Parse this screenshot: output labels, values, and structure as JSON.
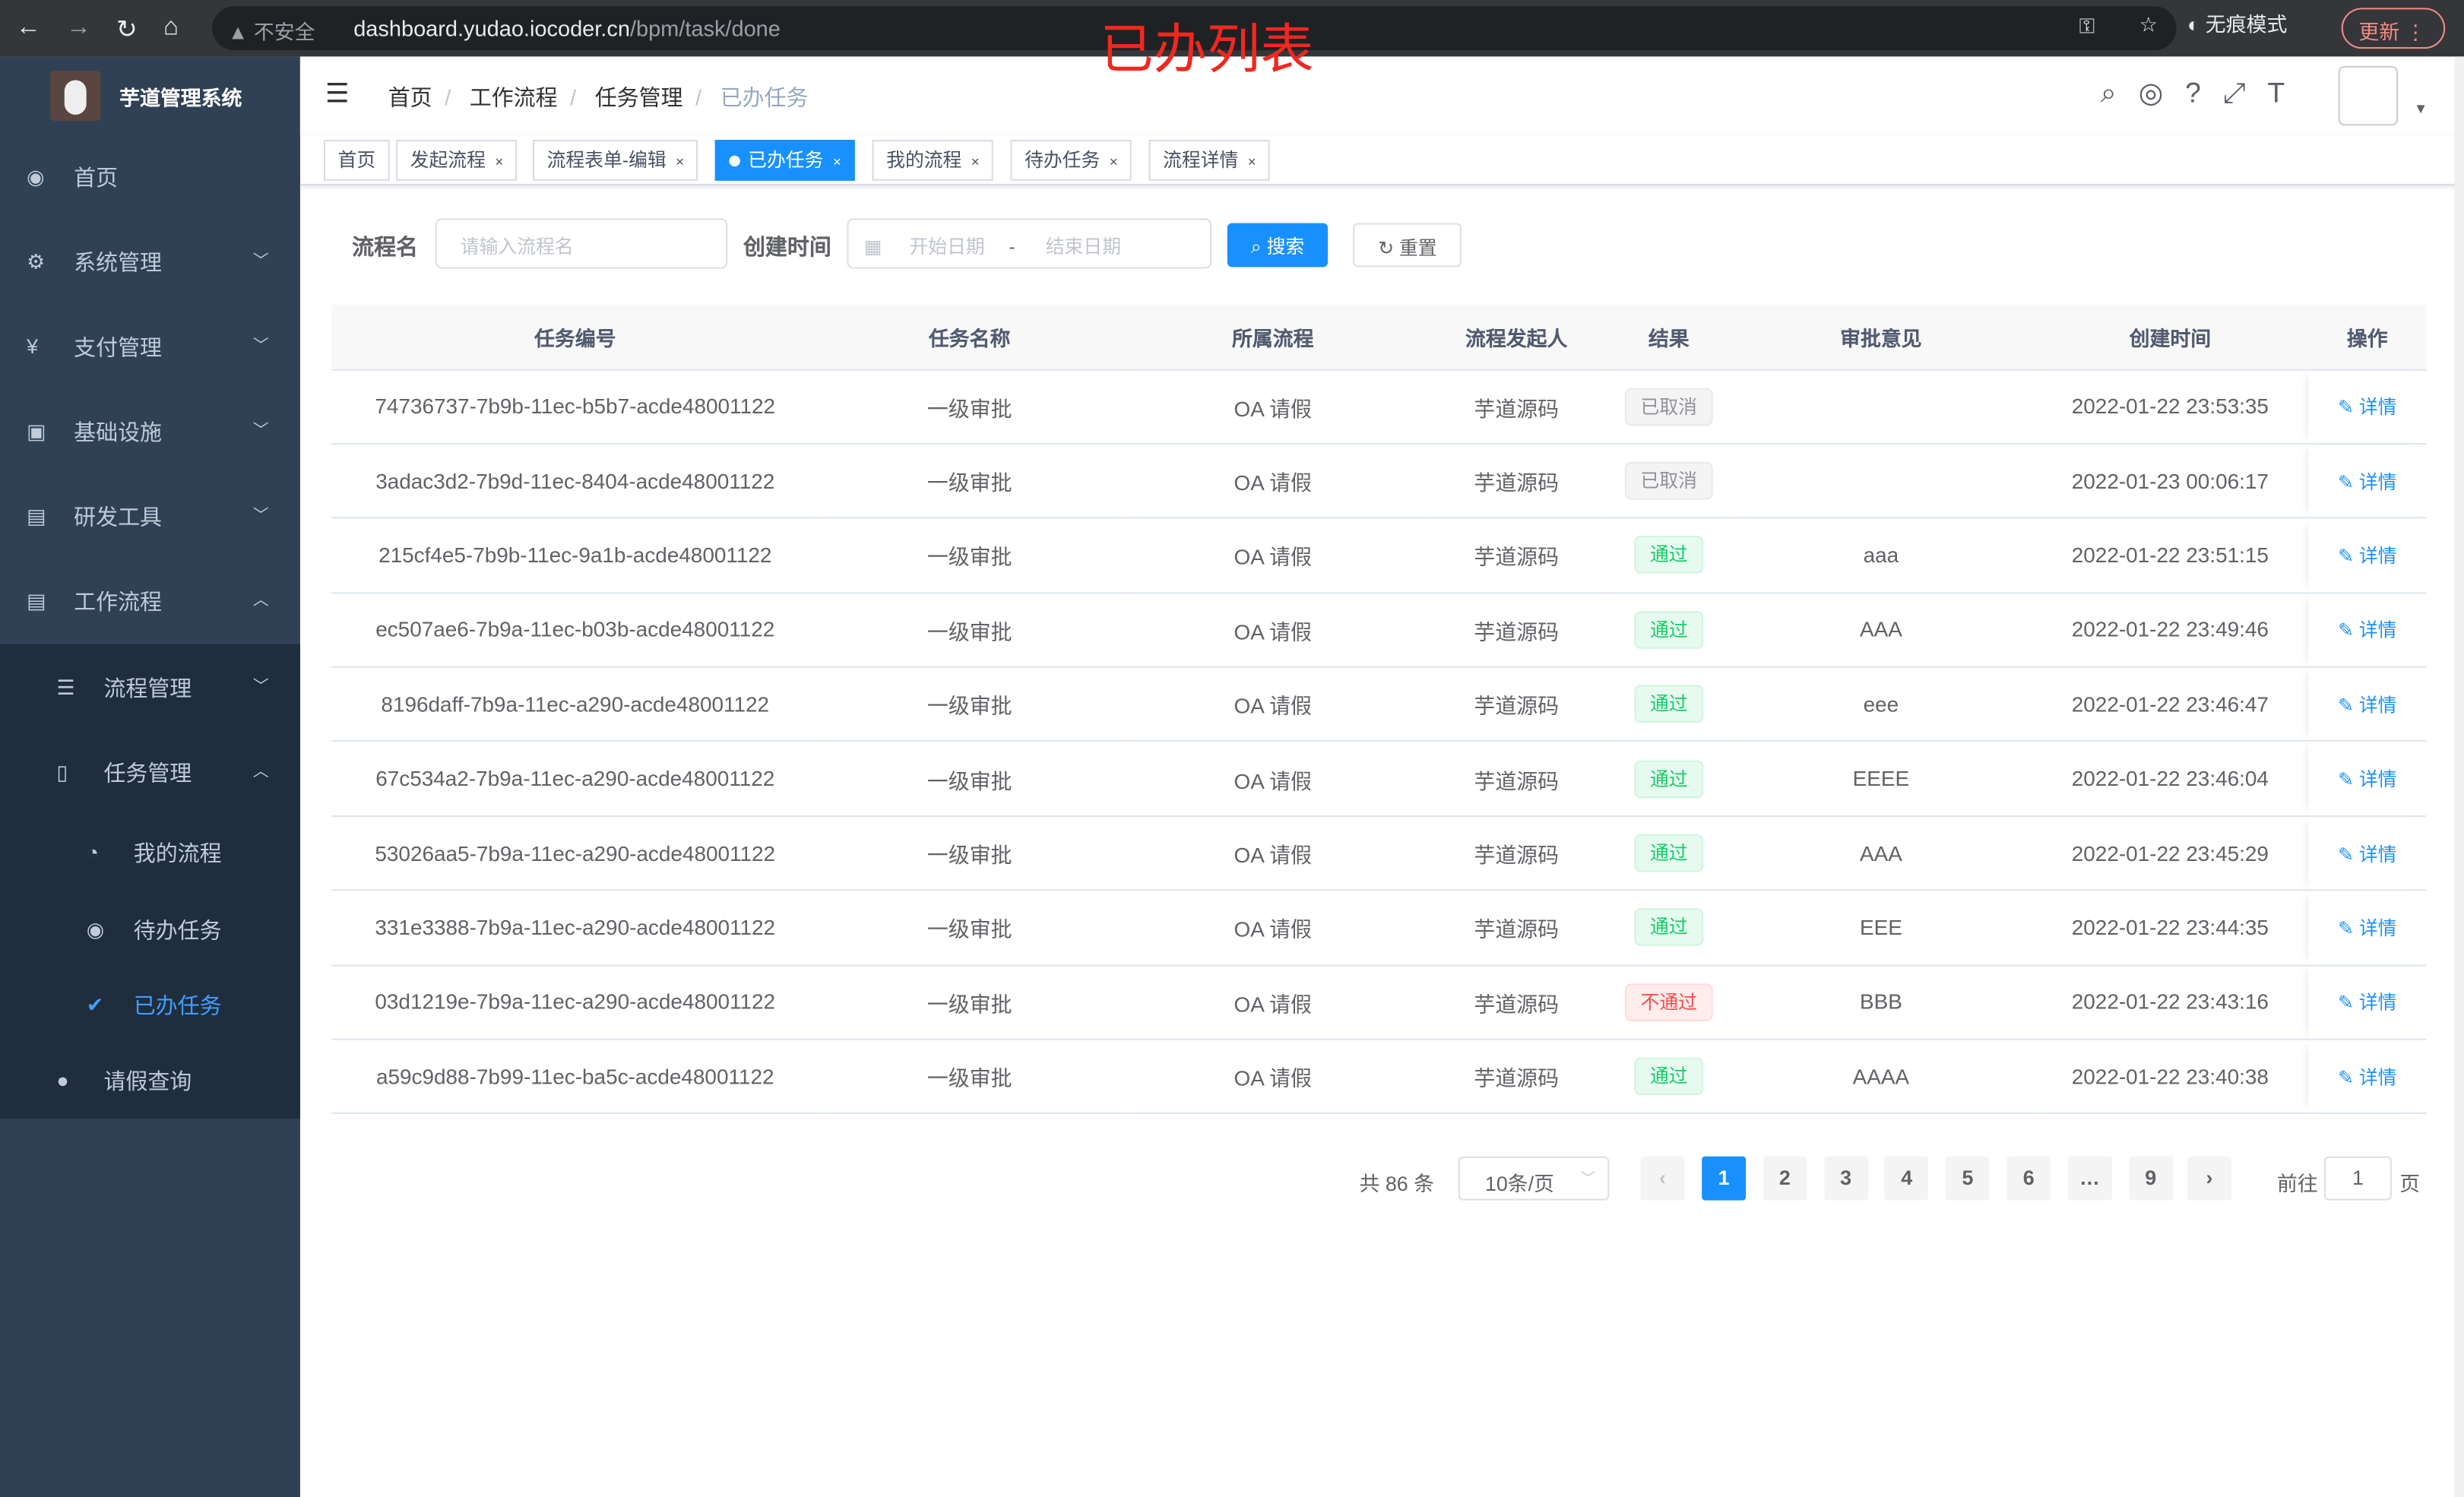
{
  "annotation_title": "已办列表",
  "browser": {
    "back": "←",
    "forward": "→",
    "reload": "↻",
    "home": "⌂",
    "insecure": "不安全",
    "url_host": "dashboard.yudao.iocoder.cn",
    "url_path": "/bpm/task/done",
    "incognito": "无痕模式",
    "update": "更新"
  },
  "sidebar": {
    "brand": "芋道管理系统",
    "items": [
      {
        "label": "首页",
        "icon": "dashboard-icon",
        "glyph": "◉"
      },
      {
        "label": "系统管理",
        "icon": "gear-icon",
        "glyph": "⚙",
        "arrow": "﹀"
      },
      {
        "label": "支付管理",
        "icon": "yen-icon",
        "glyph": "¥",
        "arrow": "﹀"
      },
      {
        "label": "基础设施",
        "icon": "monitor-icon",
        "glyph": "▣",
        "arrow": "﹀"
      },
      {
        "label": "研发工具",
        "icon": "toolbox-icon",
        "glyph": "▤",
        "arrow": "﹀"
      },
      {
        "label": "工作流程",
        "icon": "toolbox-icon",
        "glyph": "▤",
        "arrow": "︿"
      }
    ],
    "sub": [
      {
        "label": "流程管理",
        "glyph": "☰",
        "arrow": "﹀"
      },
      {
        "label": "任务管理",
        "glyph": "▯",
        "arrow": "︿"
      }
    ],
    "subsub": [
      {
        "label": "我的流程",
        "glyph": "◔"
      },
      {
        "label": "待办任务",
        "glyph": "◉"
      },
      {
        "label": "已办任务",
        "glyph": "✔"
      }
    ],
    "leave": {
      "label": "请假查询",
      "glyph": "●"
    }
  },
  "breadcrumb": [
    "首页",
    "工作流程",
    "任务管理",
    "已办任务"
  ],
  "tags": [
    {
      "label": "首页"
    },
    {
      "label": "发起流程"
    },
    {
      "label": "流程表单-编辑"
    },
    {
      "label": "已办任务",
      "active": true
    },
    {
      "label": "我的流程"
    },
    {
      "label": "待办任务"
    },
    {
      "label": "流程详情"
    }
  ],
  "search": {
    "name_label": "流程名",
    "name_placeholder": "请输入流程名",
    "time_label": "创建时间",
    "start_placeholder": "开始日期",
    "sep": "-",
    "end_placeholder": "结束日期",
    "search_btn": "搜索",
    "reset_btn": "重置"
  },
  "table": {
    "headers": [
      "任务编号",
      "任务名称",
      "所属流程",
      "流程发起人",
      "结果",
      "审批意见",
      "创建时间",
      "操作"
    ],
    "action": "详情",
    "rows": [
      [
        "74736737-7b9b-11ec-b5b7-acde48001122",
        "一级审批",
        "OA 请假",
        "芋道源码",
        "已取消",
        "",
        "2022-01-22 23:53:35"
      ],
      [
        "3adac3d2-7b9d-11ec-8404-acde48001122",
        "一级审批",
        "OA 请假",
        "芋道源码",
        "已取消",
        "",
        "2022-01-23 00:06:17"
      ],
      [
        "215cf4e5-7b9b-11ec-9a1b-acde48001122",
        "一级审批",
        "OA 请假",
        "芋道源码",
        "通过",
        "aaa",
        "2022-01-22 23:51:15"
      ],
      [
        "ec507ae6-7b9a-11ec-b03b-acde48001122",
        "一级审批",
        "OA 请假",
        "芋道源码",
        "通过",
        "AAA",
        "2022-01-22 23:49:46"
      ],
      [
        "8196daff-7b9a-11ec-a290-acde48001122",
        "一级审批",
        "OA 请假",
        "芋道源码",
        "通过",
        "eee",
        "2022-01-22 23:46:47"
      ],
      [
        "67c534a2-7b9a-11ec-a290-acde48001122",
        "一级审批",
        "OA 请假",
        "芋道源码",
        "通过",
        "EEEE",
        "2022-01-22 23:46:04"
      ],
      [
        "53026aa5-7b9a-11ec-a290-acde48001122",
        "一级审批",
        "OA 请假",
        "芋道源码",
        "通过",
        "AAA",
        "2022-01-22 23:45:29"
      ],
      [
        "331e3388-7b9a-11ec-a290-acde48001122",
        "一级审批",
        "OA 请假",
        "芋道源码",
        "通过",
        "EEE",
        "2022-01-22 23:44:35"
      ],
      [
        "03d1219e-7b9a-11ec-a290-acde48001122",
        "一级审批",
        "OA 请假",
        "芋道源码",
        "不通过",
        "BBB",
        "2022-01-22 23:43:16"
      ],
      [
        "a59c9d88-7b99-11ec-ba5c-acde48001122",
        "一级审批",
        "OA 请假",
        "芋道源码",
        "通过",
        "AAAA",
        "2022-01-22 23:40:38"
      ]
    ]
  },
  "result_colors": {
    "已取消": [
      "#909399",
      "#f4f4f5",
      "#e9e9eb"
    ],
    "通过": [
      "#13ce66",
      "#e7faf0",
      "#d0f5e0"
    ],
    "不通过": [
      "#ff4949",
      "#ffeded",
      "#ffdbdb"
    ]
  },
  "pagination": {
    "total": "共 86 条",
    "page_size": "10条/页",
    "pages": [
      "1",
      "2",
      "3",
      "4",
      "5",
      "6",
      "…",
      "9"
    ],
    "current": "1",
    "goto_label": "前往",
    "goto_value": "1",
    "page_suffix": "页"
  }
}
